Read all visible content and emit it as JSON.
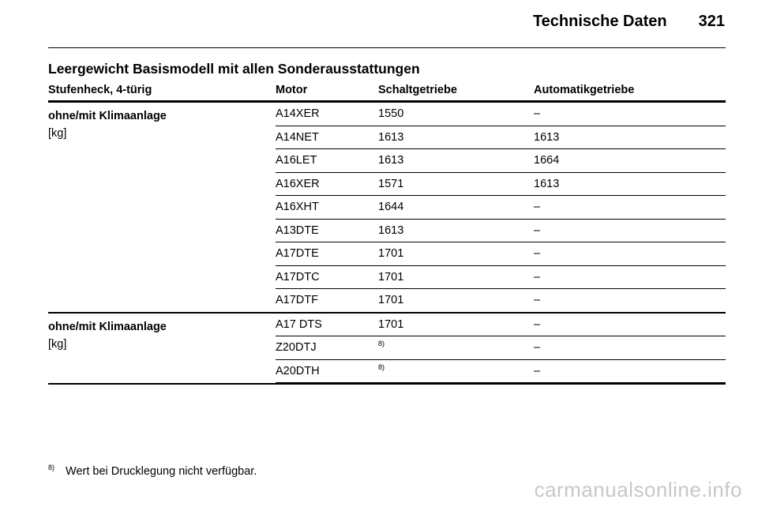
{
  "header": {
    "title": "Technische Daten",
    "page_number": "321"
  },
  "section": {
    "title": "Leergewicht Basismodell mit allen Sonderausstattungen"
  },
  "table": {
    "columns": [
      "Stufenheck, 4-türig",
      "Motor",
      "Schaltgetriebe",
      "Automatikgetriebe"
    ],
    "groups": [
      {
        "label": "ohne/mit Klimaanlage",
        "unit": "[kg]",
        "rows": [
          {
            "motor": "A14XER",
            "manual": "1550",
            "manual_note": "",
            "auto": "–"
          },
          {
            "motor": "A14NET",
            "manual": "1613",
            "manual_note": "",
            "auto": "1613"
          },
          {
            "motor": "A16LET",
            "manual": "1613",
            "manual_note": "",
            "auto": "1664"
          },
          {
            "motor": "A16XER",
            "manual": "1571",
            "manual_note": "",
            "auto": "1613"
          },
          {
            "motor": "A16XHT",
            "manual": "1644",
            "manual_note": "",
            "auto": "–"
          },
          {
            "motor": "A13DTE",
            "manual": "1613",
            "manual_note": "",
            "auto": "–"
          },
          {
            "motor": "A17DTE",
            "manual": "1701",
            "manual_note": "",
            "auto": "–"
          },
          {
            "motor": "A17DTC",
            "manual": "1701",
            "manual_note": "",
            "auto": "–"
          },
          {
            "motor": "A17DTF",
            "manual": "1701",
            "manual_note": "",
            "auto": "–"
          }
        ]
      },
      {
        "label": "ohne/mit Klimaanlage",
        "unit": "[kg]",
        "rows": [
          {
            "motor": "A17 DTS",
            "manual": "1701",
            "manual_note": "",
            "auto": "–"
          },
          {
            "motor": "Z20DTJ",
            "manual": "",
            "manual_note": "8)",
            "auto": "–"
          },
          {
            "motor": "A20DTH",
            "manual": "",
            "manual_note": "8)",
            "auto": "–"
          }
        ]
      }
    ]
  },
  "footnote": {
    "marker": "8)",
    "text": "Wert bei Drucklegung nicht verfügbar."
  },
  "watermark": "carmanualsonline.info"
}
